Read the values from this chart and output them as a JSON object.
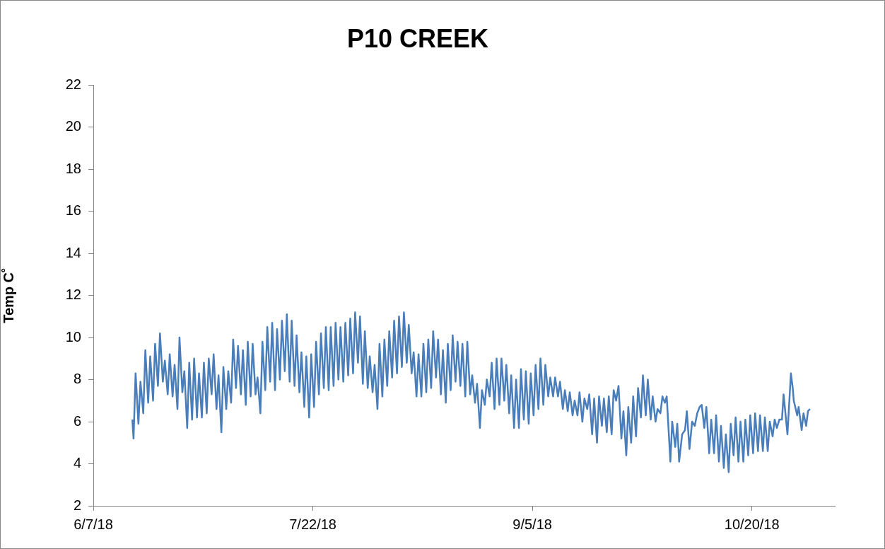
{
  "chart_data": {
    "type": "line",
    "title": "P10 CREEK",
    "ylabel": "Temp C˚",
    "xlim": [
      "2018-06-07",
      "2018-11-06"
    ],
    "xticks": [
      {
        "value": "2018-06-07",
        "label": "6/7/18"
      },
      {
        "value": "2018-07-22",
        "label": "7/22/18"
      },
      {
        "value": "2018-09-05",
        "label": "9/5/18"
      },
      {
        "value": "2018-10-20",
        "label": "10/20/18"
      }
    ],
    "ylim": [
      2,
      22
    ],
    "yticks": [
      2,
      4,
      6,
      8,
      10,
      12,
      14,
      16,
      18,
      20,
      22
    ],
    "grid": false,
    "legend": false,
    "marker": "none",
    "line_style": "solid",
    "series": [
      {
        "color": "#4a7ebb",
        "x": [
          "2018-06-15T00:00",
          "2018-06-15T06:00",
          "2018-06-15T16:00",
          "2018-06-16T06:00",
          "2018-06-16T16:00",
          "2018-06-17T06:00",
          "2018-06-17T16:00",
          "2018-06-18T06:00",
          "2018-06-18T16:00",
          "2018-06-19T06:00",
          "2018-06-19T16:00",
          "2018-06-20T06:00",
          "2018-06-20T16:00",
          "2018-06-21T06:00",
          "2018-06-21T16:00",
          "2018-06-22T06:00",
          "2018-06-22T16:00",
          "2018-06-23T06:00",
          "2018-06-23T16:00",
          "2018-06-24T06:00",
          "2018-06-24T16:00",
          "2018-06-25T06:00",
          "2018-06-25T16:00",
          "2018-06-26T06:00",
          "2018-06-26T16:00",
          "2018-06-27T06:00",
          "2018-06-27T16:00",
          "2018-06-28T06:00",
          "2018-06-28T16:00",
          "2018-06-29T06:00",
          "2018-06-29T16:00",
          "2018-06-30T06:00",
          "2018-06-30T16:00",
          "2018-07-01T06:00",
          "2018-07-01T16:00",
          "2018-07-02T06:00",
          "2018-07-02T16:00",
          "2018-07-03T06:00",
          "2018-07-03T16:00",
          "2018-07-04T06:00",
          "2018-07-04T16:00",
          "2018-07-05T06:00",
          "2018-07-05T16:00",
          "2018-07-06T06:00",
          "2018-07-06T16:00",
          "2018-07-07T06:00",
          "2018-07-07T16:00",
          "2018-07-08T06:00",
          "2018-07-08T16:00",
          "2018-07-09T06:00",
          "2018-07-09T16:00",
          "2018-07-10T06:00",
          "2018-07-10T16:00",
          "2018-07-11T06:00",
          "2018-07-11T16:00",
          "2018-07-12T06:00",
          "2018-07-12T16:00",
          "2018-07-13T06:00",
          "2018-07-13T16:00",
          "2018-07-14T06:00",
          "2018-07-14T16:00",
          "2018-07-15T06:00",
          "2018-07-15T16:00",
          "2018-07-16T06:00",
          "2018-07-16T16:00",
          "2018-07-17T06:00",
          "2018-07-17T16:00",
          "2018-07-18T06:00",
          "2018-07-18T16:00",
          "2018-07-19T06:00",
          "2018-07-19T16:00",
          "2018-07-20T06:00",
          "2018-07-20T16:00",
          "2018-07-21T06:00",
          "2018-07-21T16:00",
          "2018-07-22T06:00",
          "2018-07-22T16:00",
          "2018-07-23T06:00",
          "2018-07-23T16:00",
          "2018-07-24T06:00",
          "2018-07-24T16:00",
          "2018-07-25T06:00",
          "2018-07-25T16:00",
          "2018-07-26T06:00",
          "2018-07-26T16:00",
          "2018-07-27T06:00",
          "2018-07-27T16:00",
          "2018-07-28T06:00",
          "2018-07-28T16:00",
          "2018-07-29T06:00",
          "2018-07-29T16:00",
          "2018-07-30T06:00",
          "2018-07-30T16:00",
          "2018-07-31T06:00",
          "2018-07-31T16:00",
          "2018-08-01T06:00",
          "2018-08-01T16:00",
          "2018-08-02T06:00",
          "2018-08-02T16:00",
          "2018-08-03T06:00",
          "2018-08-03T16:00",
          "2018-08-04T06:00",
          "2018-08-04T16:00",
          "2018-08-05T06:00",
          "2018-08-05T16:00",
          "2018-08-06T06:00",
          "2018-08-06T16:00",
          "2018-08-07T06:00",
          "2018-08-07T16:00",
          "2018-08-08T06:00",
          "2018-08-08T16:00",
          "2018-08-09T06:00",
          "2018-08-09T16:00",
          "2018-08-10T06:00",
          "2018-08-10T16:00",
          "2018-08-11T06:00",
          "2018-08-11T16:00",
          "2018-08-12T06:00",
          "2018-08-12T16:00",
          "2018-08-13T06:00",
          "2018-08-13T16:00",
          "2018-08-14T06:00",
          "2018-08-14T16:00",
          "2018-08-15T06:00",
          "2018-08-15T16:00",
          "2018-08-16T06:00",
          "2018-08-16T16:00",
          "2018-08-17T06:00",
          "2018-08-17T16:00",
          "2018-08-18T06:00",
          "2018-08-18T16:00",
          "2018-08-19T06:00",
          "2018-08-19T16:00",
          "2018-08-20T06:00",
          "2018-08-20T16:00",
          "2018-08-21T06:00",
          "2018-08-21T16:00",
          "2018-08-22T06:00",
          "2018-08-22T16:00",
          "2018-08-23T06:00",
          "2018-08-23T16:00",
          "2018-08-24T06:00",
          "2018-08-24T16:00",
          "2018-08-25T06:00",
          "2018-08-25T16:00",
          "2018-08-26T06:00",
          "2018-08-26T16:00",
          "2018-08-27T06:00",
          "2018-08-27T16:00",
          "2018-08-28T06:00",
          "2018-08-28T16:00",
          "2018-08-29T06:00",
          "2018-08-29T16:00",
          "2018-08-30T06:00",
          "2018-08-30T16:00",
          "2018-08-31T06:00",
          "2018-08-31T16:00",
          "2018-09-01T06:00",
          "2018-09-01T16:00",
          "2018-09-02T06:00",
          "2018-09-02T16:00",
          "2018-09-03T06:00",
          "2018-09-03T16:00",
          "2018-09-04T06:00",
          "2018-09-04T16:00",
          "2018-09-05T06:00",
          "2018-09-05T16:00",
          "2018-09-06T06:00",
          "2018-09-06T16:00",
          "2018-09-07T06:00",
          "2018-09-07T16:00",
          "2018-09-08T06:00",
          "2018-09-08T16:00",
          "2018-09-09T06:00",
          "2018-09-09T16:00",
          "2018-09-10T06:00",
          "2018-09-10T16:00",
          "2018-09-11T06:00",
          "2018-09-11T16:00",
          "2018-09-12T06:00",
          "2018-09-12T16:00",
          "2018-09-13T06:00",
          "2018-09-13T16:00",
          "2018-09-14T06:00",
          "2018-09-14T16:00",
          "2018-09-15T06:00",
          "2018-09-15T16:00",
          "2018-09-16T06:00",
          "2018-09-16T16:00",
          "2018-09-17T06:00",
          "2018-09-17T16:00",
          "2018-09-18T06:00",
          "2018-09-18T16:00",
          "2018-09-19T06:00",
          "2018-09-19T16:00",
          "2018-09-20T06:00",
          "2018-09-20T16:00",
          "2018-09-21T06:00",
          "2018-09-21T16:00",
          "2018-09-22T04:00",
          "2018-09-22T16:00",
          "2018-09-23T06:00",
          "2018-09-23T16:00",
          "2018-09-24T06:00",
          "2018-09-24T16:00",
          "2018-09-25T06:00",
          "2018-09-25T16:00",
          "2018-09-26T06:00",
          "2018-09-26T16:00",
          "2018-09-27T06:00",
          "2018-09-27T16:00",
          "2018-09-28T06:00",
          "2018-09-28T16:00",
          "2018-09-29T06:00",
          "2018-09-29T16:00",
          "2018-09-30T06:00",
          "2018-09-30T16:00",
          "2018-10-01T06:00",
          "2018-10-01T16:00",
          "2018-10-02T04:00",
          "2018-10-02T13:00",
          "2018-10-03T07:00",
          "2018-10-03T16:00",
          "2018-10-04T07:00",
          "2018-10-04T17:00",
          "2018-10-05T02:00",
          "2018-10-05T17:00",
          "2018-10-06T07:00",
          "2018-10-06T16:00",
          "2018-10-07T05:00",
          "2018-10-07T18:00",
          "2018-10-08T07:00",
          "2018-10-08T19:00",
          "2018-10-09T07:00",
          "2018-10-09T17:00",
          "2018-10-10T06:00",
          "2018-10-10T16:00",
          "2018-10-11T06:00",
          "2018-10-11T16:00",
          "2018-10-12T06:00",
          "2018-10-12T16:00",
          "2018-10-13T06:00",
          "2018-10-13T16:00",
          "2018-10-14T06:00",
          "2018-10-14T16:00",
          "2018-10-15T06:00",
          "2018-10-15T16:00",
          "2018-10-16T06:00",
          "2018-10-16T16:00",
          "2018-10-17T06:00",
          "2018-10-17T16:00",
          "2018-10-18T06:00",
          "2018-10-18T16:00",
          "2018-10-19T06:00",
          "2018-10-19T16:00",
          "2018-10-20T06:00",
          "2018-10-20T16:00",
          "2018-10-21T06:00",
          "2018-10-21T16:00",
          "2018-10-22T06:00",
          "2018-10-22T16:00",
          "2018-10-23T06:00",
          "2018-10-23T16:00",
          "2018-10-24T06:00",
          "2018-10-24T16:00",
          "2018-10-25T03:00",
          "2018-10-25T15:00",
          "2018-10-26T04:00",
          "2018-10-26T12:00",
          "2018-10-27T07:00",
          "2018-10-28T00:00",
          "2018-10-28T09:00",
          "2018-10-28T14:00",
          "2018-10-29T07:00",
          "2018-10-29T14:00",
          "2018-10-30T05:00",
          "2018-10-30T14:00",
          "2018-10-31T03:00",
          "2018-10-31T12:00",
          "2018-10-31T22:00"
        ],
        "values": [
          6.1,
          5.2,
          8.3,
          5.9,
          7.9,
          6.4,
          9.4,
          6.9,
          9.1,
          7.0,
          9.7,
          7.7,
          10.2,
          7.9,
          8.9,
          7.3,
          9.2,
          7.2,
          8.7,
          6.6,
          10.0,
          7.4,
          8.4,
          5.7,
          8.8,
          6.1,
          9.0,
          6.2,
          8.3,
          6.2,
          8.8,
          6.4,
          9.0,
          7.3,
          9.2,
          6.6,
          8.2,
          5.5,
          8.6,
          6.6,
          8.4,
          6.9,
          9.9,
          7.6,
          9.6,
          7.3,
          9.4,
          6.8,
          9.8,
          7.2,
          9.7,
          7.3,
          8.1,
          6.4,
          9.8,
          7.5,
          10.5,
          7.9,
          10.7,
          7.5,
          10.4,
          8.0,
          10.8,
          8.4,
          11.1,
          7.9,
          10.8,
          7.7,
          10.1,
          7.4,
          9.3,
          6.7,
          9.1,
          6.2,
          9.2,
          6.7,
          9.8,
          7.3,
          10.2,
          7.6,
          10.5,
          7.5,
          10.5,
          7.7,
          10.7,
          8.0,
          10.5,
          7.9,
          10.7,
          8.2,
          10.9,
          8.3,
          11.2,
          8.8,
          11.0,
          7.8,
          10.3,
          7.6,
          9.1,
          7.4,
          8.7,
          6.6,
          9.7,
          7.2,
          9.9,
          7.7,
          10.3,
          8.1,
          10.8,
          8.3,
          11.0,
          8.6,
          11.2,
          8.8,
          10.6,
          8.3,
          9.3,
          7.2,
          9.2,
          7.2,
          9.7,
          7.4,
          9.9,
          7.6,
          10.3,
          8.1,
          9.9,
          7.3,
          9.4,
          6.9,
          9.7,
          7.5,
          10.1,
          7.9,
          9.8,
          7.7,
          9.7,
          7.2,
          9.8,
          7.3,
          8.2,
          6.9,
          7.8,
          5.7,
          7.5,
          6.8,
          8.0,
          7.2,
          8.8,
          6.6,
          9.0,
          6.8,
          9.0,
          7.0,
          8.7,
          6.4,
          8.2,
          5.7,
          8.0,
          5.7,
          8.5,
          6.1,
          8.4,
          5.9,
          8.3,
          6.3,
          8.7,
          6.6,
          9.0,
          6.8,
          8.7,
          7.2,
          8.1,
          7.2,
          8.1,
          7.2,
          7.9,
          6.6,
          7.5,
          6.5,
          7.4,
          6.3,
          7.0,
          6.3,
          7.4,
          6.0,
          7.1,
          6.6,
          7.3,
          5.4,
          7.1,
          5.0,
          7.2,
          5.8,
          7.1,
          5.5,
          7.2,
          5.4,
          7.5,
          7.0,
          7.7,
          5.2,
          6.5,
          4.4,
          6.7,
          5.0,
          7.2,
          5.3,
          7.6,
          6.2,
          8.2,
          6.3,
          8.0,
          6.1,
          7.2,
          6.0,
          6.6,
          6.4,
          7.2,
          6.9,
          7.2,
          4.1,
          6.0,
          4.8,
          5.9,
          4.1,
          5.4,
          5.6,
          6.5,
          4.7,
          6.0,
          5.8,
          6.4,
          6.7,
          6.8,
          5.7,
          6.7,
          4.5,
          6.1,
          4.5,
          6.3,
          4.1,
          5.8,
          3.8,
          5.4,
          3.6,
          5.9,
          4.4,
          6.2,
          4.1,
          6.0,
          4.1,
          6.1,
          4.4,
          6.3,
          4.5,
          6.4,
          4.6,
          6.3,
          4.6,
          6.2,
          4.6,
          6.0,
          5.3,
          6.1,
          5.7,
          6.1,
          6.1,
          7.3,
          5.4,
          8.3,
          7.6,
          7.0,
          6.3,
          6.7,
          5.6,
          6.4,
          5.8,
          6.5,
          6.6
        ]
      }
    ]
  }
}
